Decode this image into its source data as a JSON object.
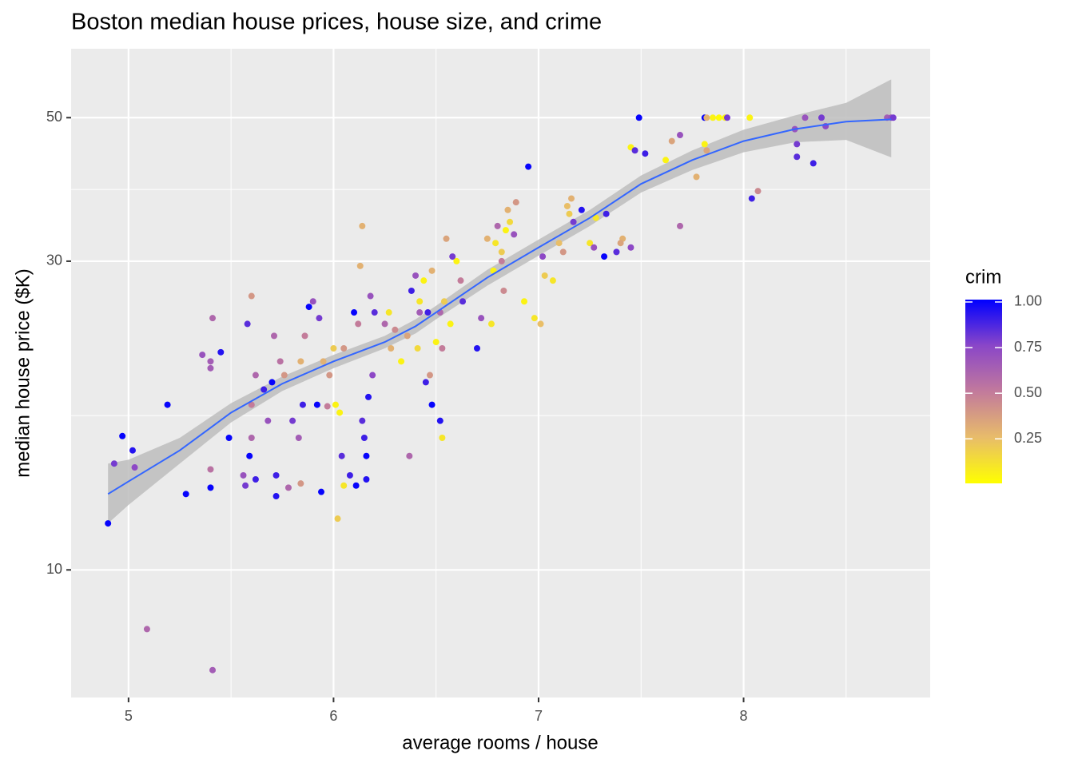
{
  "chart_data": {
    "type": "scatter",
    "title": "Boston median house prices, house size, and crime",
    "x_label": "average rooms / house",
    "y_label": "median house price ($K)",
    "xlim": [
      4.72,
      8.91
    ],
    "xticks": [
      5,
      6,
      7,
      8
    ],
    "xminor": [
      5.5,
      6.5,
      7.5,
      8.5
    ],
    "ylim": [
      6.35,
      63.9
    ],
    "yticks": [
      10,
      30,
      50
    ],
    "yminor": [
      17.32,
      38.73
    ],
    "y_log": true,
    "grid": true,
    "color_title": "crim",
    "clim": [
      0.006,
      1.013
    ],
    "cticks": [
      {
        "value": 1.0,
        "label": "1.00"
      },
      0.75,
      {
        "value": 0.5,
        "label": "0.50"
      },
      0.25
    ],
    "gradient": [
      "#ffff00",
      "#e8bc6a",
      "#c27a9c",
      "#8a46c8",
      "#0000ff"
    ],
    "x": [
      7.49,
      7.81,
      7.82,
      7.85,
      7.88,
      7.91,
      7.92,
      8.03,
      8.3,
      8.38,
      8.7,
      8.72,
      8.73,
      7.45,
      7.47,
      7.52,
      7.62,
      7.65,
      7.69,
      7.81,
      7.82,
      8.25,
      8.26,
      8.26,
      8.34,
      8.4,
      7.77,
      8.04,
      8.07,
      6.95,
      7.69,
      7.15,
      7.14,
      7.16,
      7.21,
      7.17,
      7.28,
      7.33,
      7.41,
      7.4,
      7.38,
      7.32,
      7.45,
      7.1,
      7.12,
      7.25,
      7.27,
      7.02,
      7.03,
      7.07,
      7.01,
      6.98,
      6.93,
      6.88,
      6.86,
      6.85,
      6.84,
      6.89,
      6.83,
      6.8,
      6.82,
      6.79,
      6.82,
      6.75,
      6.78,
      6.72,
      6.77,
      6.7,
      6.62,
      6.63,
      6.6,
      6.58,
      6.55,
      6.54,
      6.57,
      6.52,
      6.48,
      6.46,
      6.5,
      6.53,
      6.44,
      6.4,
      6.38,
      6.42,
      6.36,
      6.41,
      6.45,
      6.47,
      6.48,
      6.52,
      6.53,
      6.37,
      6.33,
      6.3,
      6.27,
      6.25,
      6.28,
      6.2,
      6.18,
      6.19,
      6.17,
      6.15,
      6.14,
      6.16,
      6.12,
      6.1,
      6.13,
      6.14,
      6.02,
      6.05,
      6.08,
      6.04,
      6.03,
      6.0,
      5.98,
      5.95,
      5.93,
      5.9,
      5.88,
      5.86,
      5.84,
      5.85,
      5.83,
      5.8,
      5.76,
      5.74,
      5.71,
      5.7,
      5.68,
      5.72,
      5.72,
      5.66,
      5.62,
      5.6,
      5.59,
      5.56,
      5.57,
      5.62,
      5.6,
      5.58,
      5.6,
      5.49,
      5.41,
      5.4,
      5.36,
      5.4,
      5.45,
      5.4,
      5.4,
      5.28,
      5.19,
      5.09,
      5.41,
      4.9,
      4.93,
      4.97,
      5.02,
      5.03,
      5.78,
      5.84,
      5.94,
      6.11,
      6.16,
      6.42,
      6.05,
      5.97,
      5.92,
      6.01
    ],
    "values": [
      50,
      50,
      50,
      50,
      50,
      50,
      50,
      50,
      50,
      50,
      50,
      50,
      50,
      45,
      44.5,
      44,
      43,
      46,
      47,
      45.5,
      44.5,
      48,
      45.5,
      43.5,
      42.5,
      48.5,
      40.5,
      37.5,
      38.5,
      42,
      34,
      35.5,
      36.5,
      37.5,
      36,
      34.5,
      35,
      35.5,
      32.5,
      32,
      31,
      30.5,
      31.5,
      32,
      31,
      32,
      31.5,
      30.5,
      28.5,
      28,
      24,
      24.5,
      26,
      33,
      34.5,
      36,
      33.5,
      37,
      27,
      34,
      31,
      32,
      30,
      32.5,
      29,
      24.5,
      24,
      22,
      28,
      26,
      30,
      30.5,
      32.5,
      26,
      24,
      25,
      29,
      25,
      22.5,
      22,
      28,
      28.5,
      27,
      25,
      23,
      22,
      19.5,
      20,
      18,
      17,
      16,
      15,
      21,
      23.5,
      25,
      24,
      22,
      25,
      26.5,
      20,
      18.5,
      16,
      17,
      15,
      24,
      25,
      29.5,
      34,
      12,
      13.5,
      14,
      15,
      17.5,
      22,
      20,
      21,
      24.5,
      26,
      25.5,
      23,
      21,
      18,
      16,
      17,
      20,
      21,
      23,
      19.5,
      17,
      14,
      13,
      19,
      20,
      16,
      15,
      14,
      13.5,
      13.8,
      18,
      24,
      26.5,
      16,
      24.5,
      21,
      21.5,
      20.5,
      21.7,
      14.3,
      13.4,
      13.1,
      18,
      8.1,
      7.0,
      11.8,
      14.6,
      16.1,
      15.3,
      14.4,
      13.4,
      13.6,
      13.2,
      13.5,
      13.8,
      26,
      22,
      17.9,
      18,
      18
    ],
    "color_values": [
      1.0,
      1.0,
      0.3,
      0.05,
      0.02,
      0.05,
      0.8,
      0.05,
      0.7,
      0.8,
      0.65,
      0.7,
      0.8,
      0.05,
      0.85,
      0.9,
      0.05,
      0.35,
      0.7,
      0.05,
      0.35,
      0.7,
      0.8,
      0.85,
      0.9,
      0.75,
      0.3,
      0.9,
      0.45,
      1.0,
      0.6,
      0.2,
      0.25,
      0.3,
      0.95,
      0.8,
      0.1,
      0.9,
      0.3,
      0.35,
      0.85,
      1.0,
      0.75,
      0.25,
      0.4,
      0.1,
      0.7,
      0.75,
      0.2,
      0.1,
      0.25,
      0.1,
      0.05,
      0.7,
      0.15,
      0.3,
      0.05,
      0.4,
      0.45,
      0.6,
      0.2,
      0.1,
      0.5,
      0.3,
      0.05,
      0.7,
      0.1,
      0.95,
      0.5,
      0.85,
      0.05,
      0.8,
      0.35,
      0.2,
      0.05,
      0.6,
      0.3,
      0.9,
      0.05,
      0.5,
      0.05,
      0.7,
      0.9,
      0.65,
      0.35,
      0.15,
      0.9,
      0.4,
      1.0,
      0.95,
      0.1,
      0.6,
      0.05,
      0.45,
      0.1,
      0.6,
      0.3,
      0.85,
      0.7,
      0.75,
      0.95,
      0.9,
      0.85,
      1.0,
      0.5,
      1.0,
      0.3,
      0.3,
      0.2,
      0.1,
      0.9,
      0.85,
      0.05,
      0.2,
      0.4,
      0.3,
      0.8,
      0.7,
      1.0,
      0.5,
      0.3,
      0.9,
      0.65,
      0.8,
      0.4,
      0.55,
      0.6,
      1.0,
      0.7,
      0.9,
      0.95,
      0.9,
      0.6,
      0.6,
      1.0,
      0.7,
      0.8,
      0.9,
      0.5,
      0.85,
      0.4,
      1.0,
      0.6,
      0.65,
      0.7,
      0.65,
      0.95,
      0.55,
      1.0,
      1.0,
      1.0,
      0.6,
      0.65,
      1.0,
      0.8,
      1.0,
      0.95,
      0.75,
      0.6,
      0.4,
      1.0,
      1.0,
      0.95,
      0.1,
      0.4,
      0.5,
      1.0,
      0.05
    ],
    "smooth": {
      "color": "#3366ff",
      "band_color": "#bdbdbd",
      "x": [
        4.9,
        5.0,
        5.25,
        5.5,
        5.75,
        6.0,
        6.25,
        6.4,
        6.5,
        6.75,
        7.0,
        7.25,
        7.5,
        7.75,
        8.0,
        8.25,
        8.5,
        8.72
      ],
      "values": [
        13.1,
        13.7,
        15.3,
        17.5,
        19.4,
        21.0,
        22.5,
        23.8,
        25.0,
        28.3,
        31.5,
        35,
        39.5,
        43,
        46,
        48,
        49.3,
        49.7
      ],
      "lower": [
        11.8,
        12.6,
        14.6,
        16.9,
        18.9,
        20.5,
        22.0,
        23.2,
        24.4,
        27.5,
        30.6,
        34,
        38.3,
        41.5,
        44.2,
        45.8,
        46.2,
        43.4
      ],
      "upper": [
        14.6,
        14.8,
        16.0,
        18.1,
        19.9,
        21.5,
        23.0,
        24.4,
        25.6,
        29.1,
        32.4,
        36,
        40.7,
        44.5,
        47.9,
        50.4,
        52.7,
        57.3
      ]
    }
  }
}
